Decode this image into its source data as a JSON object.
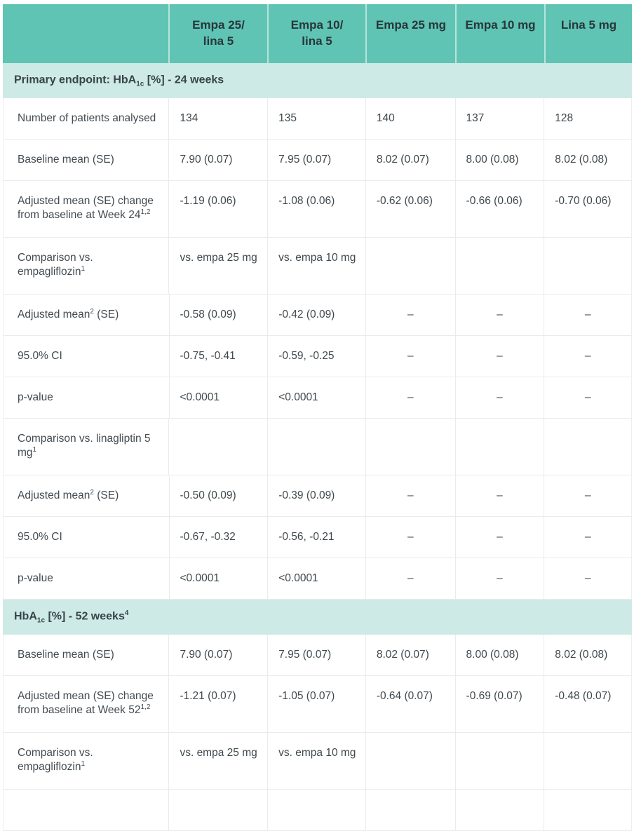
{
  "colors": {
    "header_bg": "#5fc4b3",
    "band_bg": "#cdeae6",
    "grid_border": "#e8eced",
    "header_text": "#28363c",
    "body_text": "#3f484d"
  },
  "header": {
    "columns": [
      {
        "line1": "",
        "line2": ""
      },
      {
        "line1": "Empa 25/",
        "line2": "lina 5"
      },
      {
        "line1": "Empa 10/",
        "line2": "lina 5"
      },
      {
        "line1": "Empa 25 mg",
        "line2": ""
      },
      {
        "line1": "Empa 10 mg",
        "line2": ""
      },
      {
        "line1": "Lina 5 mg",
        "line2": ""
      }
    ]
  },
  "sections": [
    {
      "pre": "Primary endpoint: HbA",
      "sub": "1c",
      "mid": " [%] - 24 weeks",
      "sup": ""
    },
    {
      "pre": "HbA",
      "sub": "1c",
      "mid": " [%] - 52 weeks",
      "sup": "4"
    }
  ],
  "rows24": [
    {
      "label": {
        "text": "Number of patients analysed",
        "sup": "",
        "tail": ""
      },
      "cells": [
        "134",
        "135",
        "140",
        "137",
        "128"
      ]
    },
    {
      "label": {
        "text": "Baseline mean (SE)",
        "sup": "",
        "tail": ""
      },
      "cells": [
        "7.90 (0.07)",
        "7.95 (0.07)",
        "8.02 (0.07)",
        "8.00 (0.08)",
        "8.02 (0.08)"
      ]
    },
    {
      "label": {
        "text": "Adjusted mean (SE) change from baseline at Week 24",
        "sup": "1,2",
        "tail": ""
      },
      "cells": [
        "-1.19 (0.06)",
        "-1.08 (0.06)",
        "-0.62 (0.06)",
        "-0.66 (0.06)",
        "-0.70 (0.06)"
      ]
    },
    {
      "label": {
        "text": "Comparison vs. empagliflozin",
        "sup": "1",
        "tail": ""
      },
      "cells": [
        "vs. empa 25 mg",
        "vs. empa 10 mg",
        "",
        "",
        ""
      ]
    },
    {
      "label": {
        "text": "Adjusted mean",
        "sup": "2",
        "tail": " (SE)"
      },
      "cells": [
        "-0.58 (0.09)",
        "-0.42 (0.09)",
        "–",
        "–",
        "–"
      ]
    },
    {
      "label": {
        "text": "95.0% CI",
        "sup": "",
        "tail": ""
      },
      "cells": [
        "-0.75, -0.41",
        "-0.59, -0.25",
        "–",
        "–",
        "–"
      ]
    },
    {
      "label": {
        "text": "p-value",
        "sup": "",
        "tail": ""
      },
      "cells": [
        "<0.0001",
        "<0.0001",
        "–",
        "–",
        "–"
      ]
    },
    {
      "label": {
        "text": "Comparison vs. linagliptin 5 mg",
        "sup": "1",
        "tail": ""
      },
      "cells": [
        "",
        "",
        "",
        "",
        ""
      ]
    },
    {
      "label": {
        "text": "Adjusted mean",
        "sup": "2",
        "tail": " (SE)"
      },
      "cells": [
        "-0.50 (0.09)",
        "-0.39 (0.09)",
        "–",
        "–",
        "–"
      ]
    },
    {
      "label": {
        "text": "95.0% CI",
        "sup": "",
        "tail": ""
      },
      "cells": [
        "-0.67, -0.32",
        "-0.56, -0.21",
        "–",
        "–",
        "–"
      ]
    },
    {
      "label": {
        "text": "p-value",
        "sup": "",
        "tail": ""
      },
      "cells": [
        "<0.0001",
        "<0.0001",
        "–",
        "–",
        "–"
      ]
    }
  ],
  "rows52": [
    {
      "label": {
        "text": "Baseline mean (SE)",
        "sup": "",
        "tail": ""
      },
      "cells": [
        "7.90 (0.07)",
        "7.95 (0.07)",
        "8.02 (0.07)",
        "8.00 (0.08)",
        "8.02 (0.08)"
      ]
    },
    {
      "label": {
        "text": "Adjusted mean (SE) change from baseline at Week 52",
        "sup": "1,2",
        "tail": ""
      },
      "cells": [
        "-1.21 (0.07)",
        "-1.05 (0.07)",
        "-0.64 (0.07)",
        "-0.69 (0.07)",
        "-0.48 (0.07)"
      ]
    },
    {
      "label": {
        "text": "Comparison vs. empagliflozin",
        "sup": "1",
        "tail": ""
      },
      "cells": [
        "vs. empa 25 mg",
        "vs. empa 10 mg",
        "",
        "",
        ""
      ]
    },
    {
      "label": {
        "text": "",
        "sup": "",
        "tail": ""
      },
      "cells": [
        "",
        "",
        "",
        "",
        ""
      ]
    }
  ]
}
